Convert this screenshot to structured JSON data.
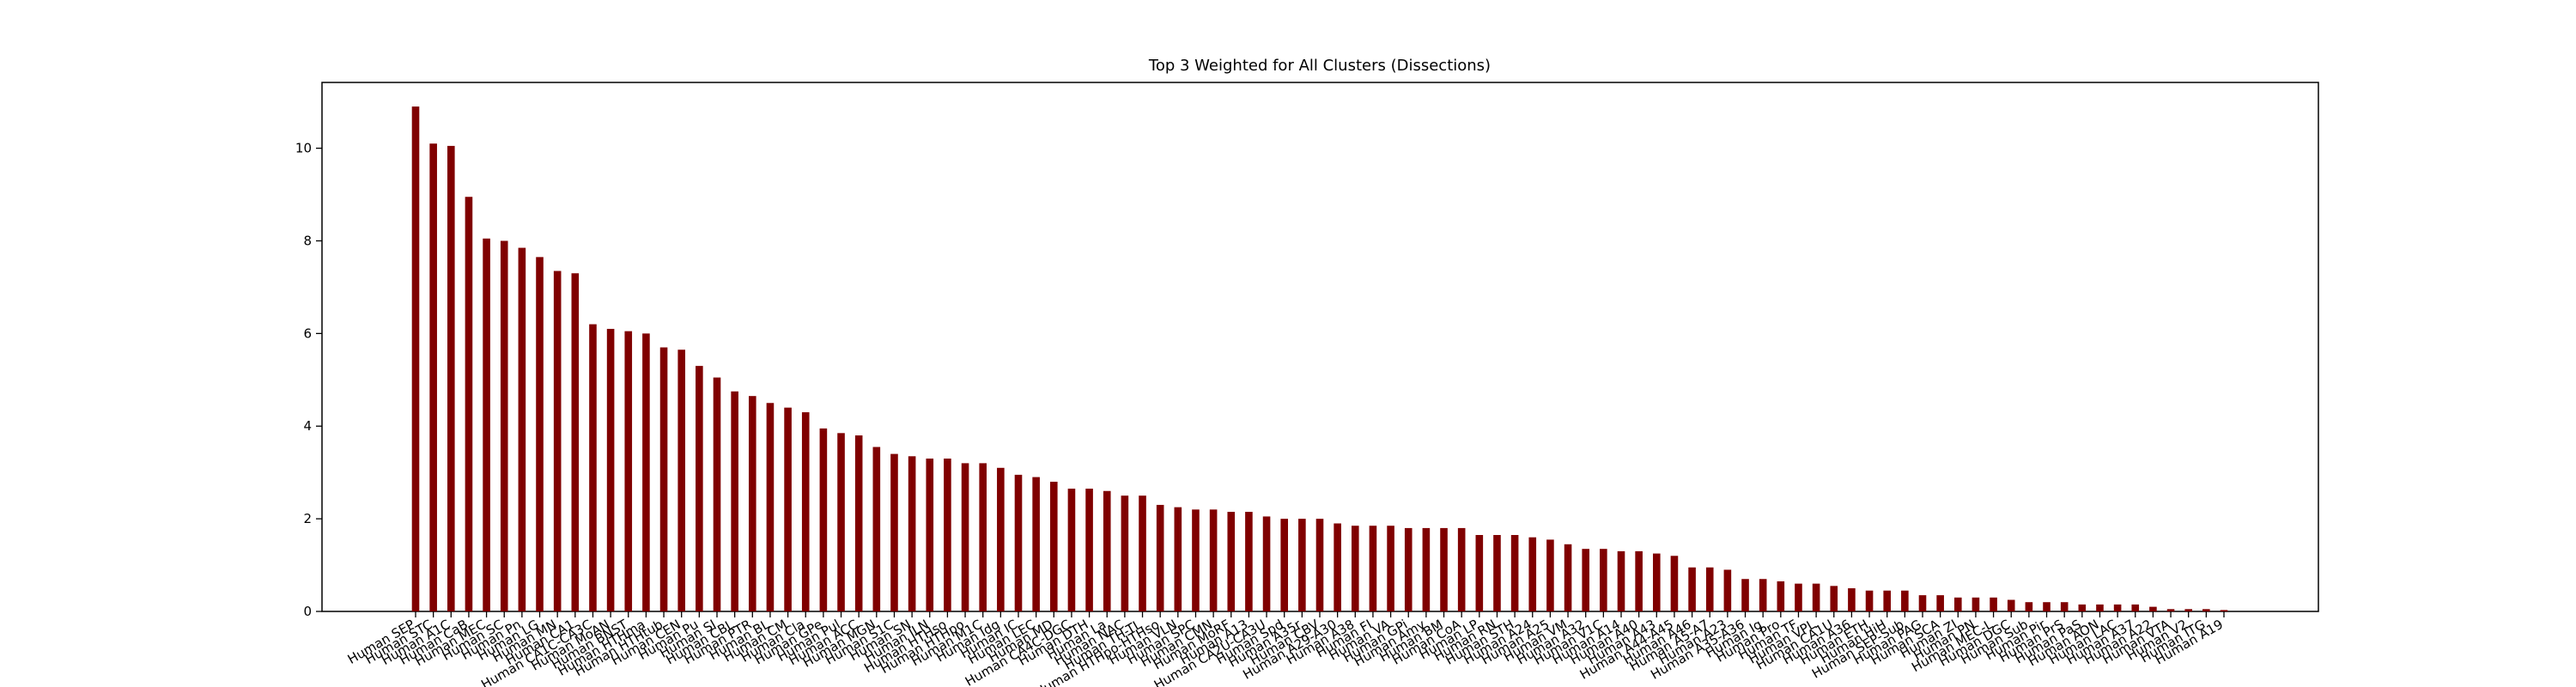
{
  "chart_data": {
    "type": "bar",
    "title": "Top 3 Weighted for All Clusters (Dissections)",
    "categories": [
      "Human SEP",
      "Human STC",
      "Human A1C",
      "Human CaB",
      "Human MEC",
      "Human SC",
      "Human Pn",
      "Human LG",
      "Human MN",
      "Human CA1",
      "Human CA1C-CA3C",
      "Human MoAN",
      "Human BNST",
      "Human HTHma",
      "Human HTHtub",
      "Human CEN",
      "Human Pu",
      "Human SI",
      "Human CBL",
      "Human PTR",
      "Human BL",
      "Human CM",
      "Human Cla",
      "Human GPe",
      "Human Pul",
      "Human ACC",
      "Human MGN",
      "Human S1C",
      "Human SN",
      "Human ILN",
      "Human HTHso",
      "Human HTHpo",
      "Human M1C",
      "Human Idg",
      "Human IC",
      "Human LEC",
      "Human MD",
      "Human CA4C-DGC",
      "Human DTH",
      "Human La",
      "Human NAC",
      "Human TH-TL",
      "Human HTHpo-HTHso",
      "Human VLN",
      "Human SPC",
      "Human CMN",
      "Human MoRF",
      "Human A13",
      "Human CA2U-CA3U",
      "Human Spd",
      "Human A35r",
      "Human CBV",
      "Human A29-A30",
      "Human A38",
      "Human FI",
      "Human VA",
      "Human GPi",
      "Human Amy",
      "Human BM",
      "Human CoA",
      "Human LP",
      "Human RN",
      "Human STH",
      "Human A24",
      "Human A25",
      "Human VM",
      "Human A32",
      "Human V1C",
      "Human A14",
      "Human A40",
      "Human A43",
      "Human A44-A45",
      "Human A46",
      "Human A5-A7",
      "Human A23",
      "Human A35-A36",
      "Human Ig",
      "Human Pro",
      "Human TF",
      "Human VPL",
      "Human CA1U",
      "Human A36",
      "Human ETH",
      "Human HiH",
      "Human SEP-Sub",
      "Human PAG",
      "Human SCA",
      "Human ZI",
      "Human PN",
      "Human MEC-L",
      "Human DGC",
      "Human Sub",
      "Human Pir",
      "Human PrS",
      "Human PaS",
      "Human AON",
      "Human LAC",
      "Human A37",
      "Human A22",
      "Human VTA",
      "Human V2",
      "Human ITG",
      "Human A19"
    ],
    "values": [
      10.9,
      10.1,
      10.05,
      8.95,
      8.05,
      8.0,
      7.85,
      7.65,
      7.35,
      7.3,
      6.2,
      6.1,
      6.05,
      6.0,
      5.7,
      5.65,
      5.3,
      5.05,
      4.75,
      4.65,
      4.5,
      4.4,
      4.3,
      3.95,
      3.85,
      3.8,
      3.55,
      3.4,
      3.35,
      3.3,
      3.3,
      3.2,
      3.2,
      3.1,
      2.95,
      2.9,
      2.8,
      2.65,
      2.65,
      2.6,
      2.5,
      2.5,
      2.3,
      2.25,
      2.2,
      2.2,
      2.15,
      2.15,
      2.05,
      2.0,
      2.0,
      2.0,
      1.9,
      1.85,
      1.85,
      1.85,
      1.8,
      1.8,
      1.8,
      1.8,
      1.65,
      1.65,
      1.65,
      1.6,
      1.55,
      1.45,
      1.35,
      1.35,
      1.3,
      1.3,
      1.25,
      1.2,
      0.95,
      0.95,
      0.9,
      0.7,
      0.7,
      0.65,
      0.6,
      0.6,
      0.55,
      0.5,
      0.45,
      0.45,
      0.45,
      0.35,
      0.35,
      0.3,
      0.3,
      0.3,
      0.25,
      0.2,
      0.2,
      0.2,
      0.15,
      0.15,
      0.15,
      0.15,
      0.1,
      0.05,
      0.05,
      0.05,
      0.03
    ],
    "color": "#800000",
    "ylim": [
      0,
      11.42
    ],
    "yticks": [
      0,
      2,
      4,
      6,
      8,
      10
    ],
    "grid": false
  }
}
